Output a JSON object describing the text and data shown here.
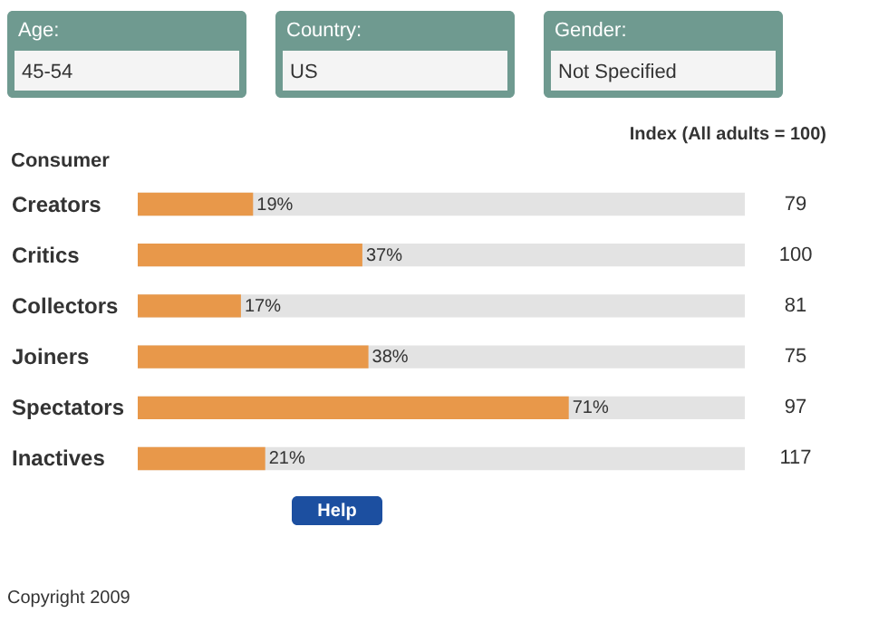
{
  "chart_data": {
    "type": "bar",
    "orientation": "horizontal",
    "ylabel": "Consumer",
    "categories": [
      "Creators",
      "Critics",
      "Collectors",
      "Joiners",
      "Spectators",
      "Inactives"
    ],
    "values": [
      19,
      37,
      17,
      38,
      71,
      21
    ],
    "value_labels": [
      "19%",
      "37%",
      "17%",
      "38%",
      "71%",
      "21%"
    ],
    "color": "#e8984a",
    "xlim": [
      0,
      100
    ],
    "tick_labels": "y",
    "annotations": [
      "Age:",
      "45-54",
      "Country:",
      "US",
      "Gender:",
      "Not Specified",
      "Index (All adults = 100)",
      "79",
      "100",
      "81",
      "75",
      "97",
      "117",
      "Help",
      "Copyright 2009"
    ]
  }
}
